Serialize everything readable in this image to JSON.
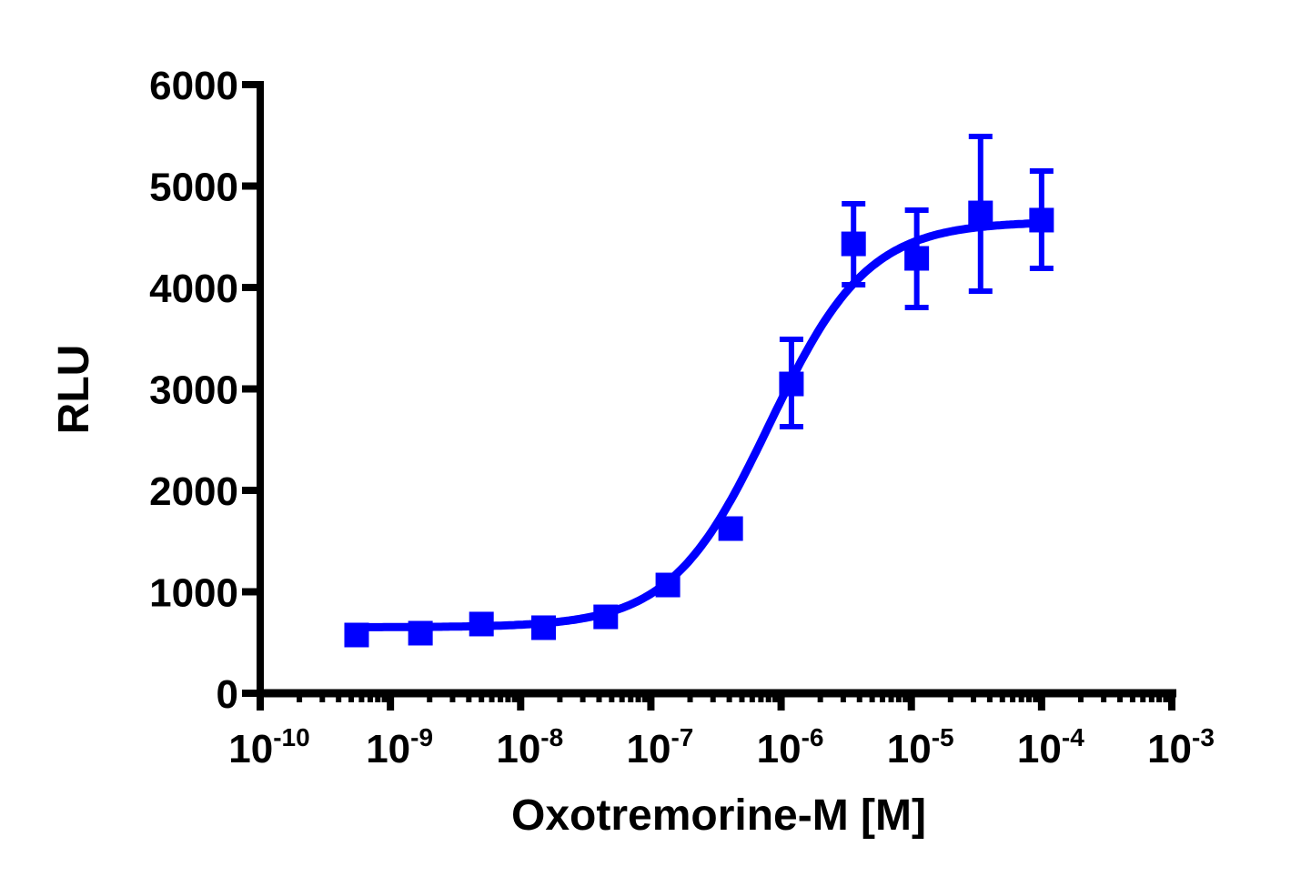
{
  "chart_data": {
    "type": "scatter",
    "subtype": "dose-response with fitted sigmoid curve and error bars",
    "title": "",
    "xlabel": "Oxotremorine-M [M]",
    "ylabel": "RLU",
    "xscale": "log",
    "xlim": [
      1e-10,
      0.001
    ],
    "ylim": [
      0,
      6000
    ],
    "grid": false,
    "legend": null,
    "color": "#0000FF",
    "marker": "square",
    "y_ticks": [
      0,
      1000,
      2000,
      3000,
      4000,
      5000,
      6000
    ],
    "y_tick_labels": [
      "0",
      "1000",
      "2000",
      "3000",
      "4000",
      "5000",
      "6000"
    ],
    "x_ticks_exp": [
      -10,
      -9,
      -8,
      -7,
      -6,
      -5,
      -4,
      -3
    ],
    "x_tick_labels": [
      "10-10",
      "10-9",
      "10-8",
      "10-7",
      "10-6",
      "10-5",
      "10-4",
      "10-3"
    ],
    "series": [
      {
        "name": "Oxotremorine-M",
        "x": [
          5.5e-10,
          1.7e-09,
          5e-09,
          1.5e-08,
          4.5e-08,
          1.35e-07,
          4.1e-07,
          1.2e-06,
          3.6e-06,
          1.1e-05,
          3.4e-05,
          0.0001
        ],
        "y": [
          574,
          592,
          682,
          646,
          753,
          1067,
          1623,
          3049,
          4430,
          4287,
          4735,
          4664
        ],
        "err_low": [
          null,
          null,
          null,
          null,
          null,
          null,
          null,
          2628,
          4027,
          3803,
          3964,
          4188
        ],
        "err_high": [
          null,
          null,
          null,
          null,
          null,
          null,
          null,
          3489,
          4825,
          4762,
          5489,
          5148
        ]
      }
    ],
    "fit": {
      "model": "sigmoidal dose-response (4PL)",
      "bottom": 650,
      "top": 4650,
      "log_ec50": -6.09,
      "hill_slope": 1.15
    }
  },
  "axes": {
    "x_title": "Oxotremorine-M [M]",
    "y_title": "RLU"
  }
}
